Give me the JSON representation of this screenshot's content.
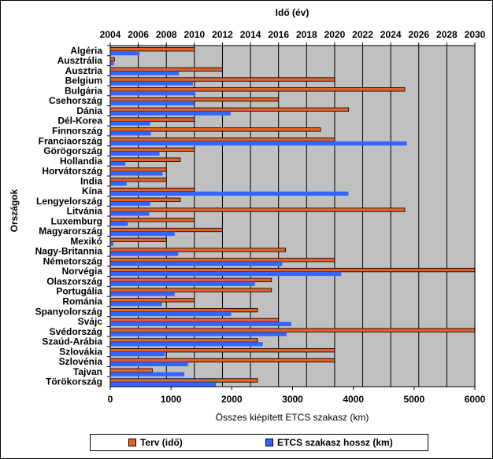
{
  "chart_data": {
    "type": "bar",
    "orientation": "horizontal",
    "ylabel": "Országok",
    "categories": [
      "Algéria",
      "Ausztrália",
      "Ausztria",
      "Belgium",
      "Bulgária",
      "Csehország",
      "Dánia",
      "Dél-Korea",
      "Finnország",
      "Franciaország",
      "Görögország",
      "Hollandia",
      "Horvátország",
      "India",
      "Kína",
      "Lengyelország",
      "Litvánia",
      "Luxemburg",
      "Magyarország",
      "Mexikó",
      "Nagy-Britannia",
      "Németország",
      "Norvégia",
      "Olaszország",
      "Portugália",
      "Románia",
      "Spanyolország",
      "Svájc",
      "Svédország",
      "Szaúd-Arábia",
      "Szlovákia",
      "Szlovénia",
      "Tajvan",
      "Törökország"
    ],
    "top_axis": {
      "label": "Idő (év)",
      "min": 2004,
      "max": 2030,
      "ticks": [
        2004,
        2006,
        2008,
        2010,
        2012,
        2014,
        2016,
        2018,
        2020,
        2022,
        2024,
        2026,
        2028,
        2030
      ]
    },
    "bottom_axis": {
      "label": "Összes kiépített ETCS szakasz (km)",
      "min": 0,
      "max": 6000,
      "ticks": [
        0,
        1000,
        2000,
        3000,
        4000,
        5000,
        6000
      ]
    },
    "grid": "vertical",
    "series": [
      {
        "name": "Terv (idő)",
        "axis": "top",
        "color": "#e0602a",
        "values": [
          2010,
          2004.3,
          2012,
          2020,
          2025,
          2016,
          2021,
          2010,
          2019,
          2020,
          2010,
          2009,
          2008,
          2008,
          2010,
          2009,
          2025,
          2010,
          2012,
          2008,
          2016.5,
          2020,
          2030,
          2015.5,
          2015.5,
          2010,
          2014.5,
          2016,
          2030,
          2014.5,
          2020,
          2020,
          2007,
          2014.5
        ]
      },
      {
        "name": "ETCS szakasz hossz (km)",
        "axis": "bottom",
        "color": "#3366ff",
        "values": [
          480,
          60,
          1130,
          1360,
          1400,
          1380,
          1980,
          660,
          670,
          4880,
          810,
          250,
          860,
          270,
          3920,
          660,
          640,
          290,
          1060,
          50,
          1120,
          2830,
          3800,
          2380,
          1060,
          850,
          1990,
          2980,
          2900,
          2510,
          900,
          1280,
          1220,
          1740
        ]
      }
    ]
  },
  "legend": {
    "items": [
      "Terv (idő)",
      "ETCS szakasz hossz (km)"
    ]
  }
}
